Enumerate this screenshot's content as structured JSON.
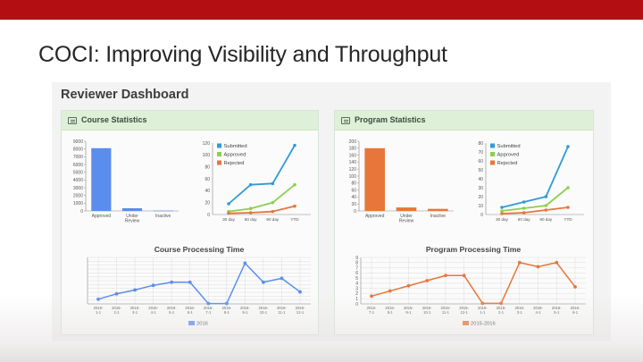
{
  "slide": {
    "title": "COCI: Improving Visibility and Throughput",
    "accent_color": "#b30f12"
  },
  "dashboard": {
    "title": "Reviewer Dashboard",
    "panels": [
      {
        "title": "Course Statistics",
        "icon": "list-icon"
      },
      {
        "title": "Program Statistics",
        "icon": "list-icon"
      }
    ]
  },
  "colors": {
    "course_bar": "#5b8def",
    "program_bar": "#e8763a",
    "submitted": "#2f9bd6",
    "approved": "#8dcf4f",
    "rejected": "#e8763a"
  },
  "chart_data": [
    {
      "type": "bar",
      "title": "",
      "categories": [
        "Approved",
        "Under\nReview",
        "Inactive"
      ],
      "values": [
        8100,
        350,
        40
      ],
      "ylim": [
        0,
        9000
      ],
      "yticks": [
        0,
        1000,
        2000,
        3000,
        4000,
        5000,
        6000,
        7000,
        8000,
        9000
      ],
      "color": "#5b8def"
    },
    {
      "type": "line",
      "title": "",
      "categories": [
        "30 day",
        "60 day",
        "90 day",
        "YTD"
      ],
      "ylim": [
        0,
        120
      ],
      "yticks": [
        0,
        20,
        40,
        60,
        80,
        100,
        120
      ],
      "legend": "top-left",
      "series": [
        {
          "name": "Submitted",
          "values": [
            18,
            50,
            52,
            116
          ],
          "color": "#2f9bd6"
        },
        {
          "name": "Approved",
          "values": [
            5,
            10,
            20,
            50
          ],
          "color": "#8dcf4f"
        },
        {
          "name": "Rejected",
          "values": [
            2,
            3,
            5,
            14
          ],
          "color": "#e8763a"
        }
      ]
    },
    {
      "type": "bar",
      "title": "",
      "categories": [
        "Approved",
        "Under\nReview",
        "Inactive"
      ],
      "values": [
        180,
        10,
        6
      ],
      "ylim": [
        0,
        200
      ],
      "yticks": [
        0,
        20,
        40,
        60,
        80,
        100,
        120,
        140,
        160,
        180,
        200
      ],
      "color": "#e8763a"
    },
    {
      "type": "line",
      "title": "",
      "categories": [
        "30 day",
        "60 day",
        "90 day",
        "YTD"
      ],
      "ylim": [
        0,
        80
      ],
      "yticks": [
        0,
        10,
        20,
        30,
        40,
        50,
        60,
        70,
        80
      ],
      "legend": "top-left",
      "series": [
        {
          "name": "Submitted",
          "values": [
            8,
            14,
            20,
            76
          ],
          "color": "#2f9bd6"
        },
        {
          "name": "Approved",
          "values": [
            4,
            7,
            10,
            30
          ],
          "color": "#8dcf4f"
        },
        {
          "name": "Rejected",
          "values": [
            1,
            2,
            5,
            8
          ],
          "color": "#e8763a"
        }
      ]
    },
    {
      "type": "line",
      "title": "Course Processing Time",
      "categories": [
        "2016-1-1",
        "2016-2-1",
        "2016-3-1",
        "2016-4-1",
        "2016-5-1",
        "2016-6-1",
        "2016-7-1",
        "2016-8-1",
        "2016-9-1",
        "2016-10-1",
        "2016-11-1",
        "2016-12-1"
      ],
      "ylim": [
        0,
        12
      ],
      "legend": "bottom-center",
      "series": [
        {
          "name": "2016",
          "values": [
            1.2,
            2.6,
            3.6,
            4.8,
            5.6,
            5.6,
            0.1,
            0.1,
            10.5,
            5.6,
            6.6,
            3.1
          ],
          "color": "#5b8def"
        }
      ]
    },
    {
      "type": "line",
      "title": "Program Processing Time",
      "categories": [
        "2015-7-1",
        "2015-8-1",
        "2015-9-1",
        "2015-10-1",
        "2015-11-1",
        "2015-12-1",
        "2016-1-1",
        "2016-2-1",
        "2016-3-1",
        "2016-4-1",
        "2016-5-1",
        "2016-6-1"
      ],
      "ylim": [
        0,
        9
      ],
      "yticks": [
        0,
        1,
        2,
        3,
        4,
        5,
        6,
        7,
        8,
        9
      ],
      "legend": "bottom-center",
      "series": [
        {
          "name": "2015-2016",
          "values": [
            1.5,
            2.5,
            3.5,
            4.5,
            5.5,
            5.5,
            0.1,
            0.1,
            8.0,
            7.2,
            8.0,
            3.3
          ],
          "color": "#e8763a"
        }
      ]
    }
  ]
}
